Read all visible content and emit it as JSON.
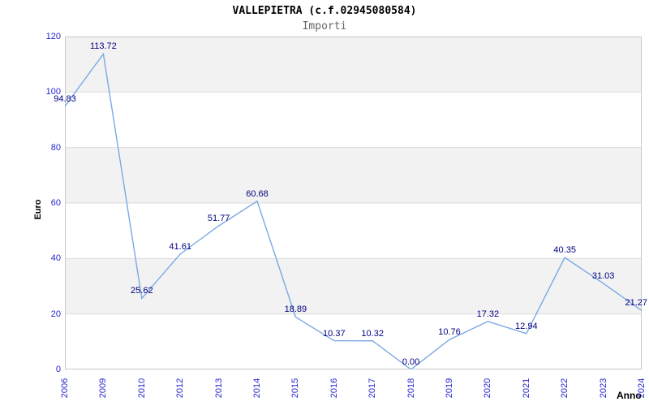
{
  "header": {
    "title": "VALLEPIETRA (c.f.02945080584)",
    "subtitle": "Importi"
  },
  "chart_data": {
    "type": "line",
    "title": "VALLEPIETRA (c.f.02945080584)",
    "subtitle": "Importi",
    "xlabel": "Anno",
    "ylabel": "Euro",
    "categories": [
      "2006",
      "2009",
      "2010",
      "2012",
      "2013",
      "2014",
      "2015",
      "2016",
      "2017",
      "2018",
      "2019",
      "2020",
      "2021",
      "2022",
      "2023",
      "2024"
    ],
    "values": [
      94.83,
      113.72,
      25.62,
      41.61,
      51.77,
      60.68,
      18.89,
      10.37,
      10.32,
      0.0,
      10.76,
      17.32,
      12.94,
      40.35,
      31.03,
      21.27
    ],
    "data_labels": [
      "94.83",
      "113.72",
      "25.62",
      "41.61",
      "51.77",
      "60.68",
      "18.89",
      "10.37",
      "10.32",
      "0.00",
      "10.76",
      "17.32",
      "12.94",
      "40.35",
      "31.03",
      "21.27"
    ],
    "ylim": [
      0,
      120
    ],
    "yticks": [
      0,
      20,
      40,
      60,
      80,
      100,
      120
    ],
    "grid": "horizontal-bands-alternating",
    "legend": "none",
    "markers": "none",
    "x_label_rotation_deg": 90,
    "colors": {
      "line": "#79a9e2",
      "tick_label": "#2626cc",
      "data_label": "#000080",
      "band": "#f2f2f2",
      "band_alt": "#ffffff",
      "gridline": "#dcdcdc",
      "plot_border": "#c8c8c8",
      "title": "#000000",
      "subtitle": "#666666",
      "axis_title": "#000000",
      "background": "#ffffff"
    }
  }
}
